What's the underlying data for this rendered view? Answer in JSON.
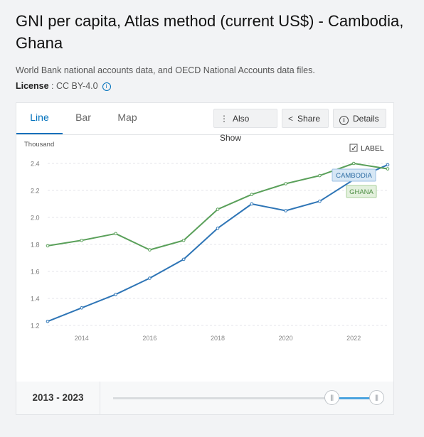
{
  "header": {
    "title": "GNI per capita, Atlas method (current US$) - Cambodia, Ghana",
    "source": "World Bank national accounts data, and OECD National Accounts data files.",
    "license_label": "License",
    "license_value": " : CC BY-4.0",
    "info_glyph": "i"
  },
  "tabs": [
    {
      "label": "Line",
      "active": true
    },
    {
      "label": "Bar",
      "active": false
    },
    {
      "label": "Map",
      "active": false
    }
  ],
  "toolbar": {
    "also_show": "Also Show",
    "share": "Share",
    "details": "Details",
    "more_glyph": "⋮",
    "share_glyph": "<",
    "info_glyph": "i"
  },
  "chart_data": {
    "type": "line",
    "unit_label": "Thousand",
    "label_toggle": "LABEL",
    "label_toggle_checked": true,
    "check_glyph": "✓",
    "x": [
      2013,
      2014,
      2015,
      2016,
      2017,
      2018,
      2019,
      2020,
      2021,
      2022,
      2023
    ],
    "series": [
      {
        "name": "CAMBODIA",
        "color": "#2e75b6",
        "values": [
          1.23,
          1.33,
          1.43,
          1.55,
          1.69,
          1.92,
          2.1,
          2.05,
          2.12,
          2.28,
          2.39
        ]
      },
      {
        "name": "GHANA",
        "color": "#5aa05a",
        "values": [
          1.79,
          1.83,
          1.88,
          1.76,
          1.83,
          2.06,
          2.17,
          2.25,
          2.31,
          2.4,
          2.36
        ]
      }
    ],
    "xlim": [
      2013,
      2023
    ],
    "ylim": [
      1.2,
      2.4
    ],
    "yticks": [
      "1.2",
      "1.4",
      "1.6",
      "1.8",
      "2.0",
      "2.2",
      "2.4"
    ],
    "xticks": [
      "2014",
      "2016",
      "2018",
      "2020",
      "2022"
    ],
    "grid": true
  },
  "range": {
    "label": "2013 - 2023",
    "handle_glyph": "|||",
    "start_fraction": 0.83,
    "end_fraction": 1.0
  }
}
